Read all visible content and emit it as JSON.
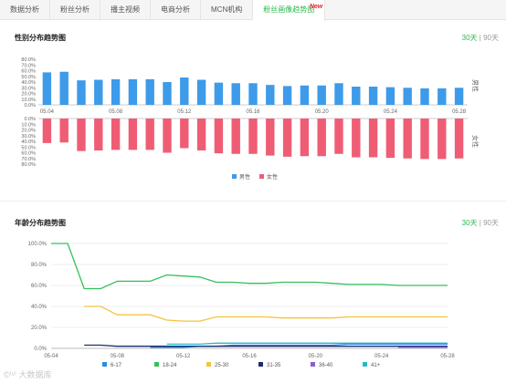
{
  "tabs": [
    {
      "label": "数据分析",
      "active": false
    },
    {
      "label": "粉丝分析",
      "active": false
    },
    {
      "label": "播主视频",
      "active": false
    },
    {
      "label": "电商分析",
      "active": false
    },
    {
      "label": "MCN机构",
      "active": false
    },
    {
      "label": "粉丝画像趋势图",
      "active": true
    }
  ],
  "new_badge": "New",
  "gender_section": {
    "title": "性别分布趋势图",
    "range_30": "30天",
    "range_sep": " | ",
    "range_90": "90天"
  },
  "age_section": {
    "title": "年龄分布趋势图",
    "range_30": "30天",
    "range_sep": " | ",
    "range_90": "90天"
  },
  "watermark": "©⁽ᵛ⁾ 大数据库",
  "chart_data": [
    {
      "type": "bar",
      "title": "性别分布趋势图",
      "x": [
        "05.04",
        "05.05",
        "05.06",
        "05.07",
        "05.08",
        "05.09",
        "05.10",
        "05.11",
        "05.12",
        "05.13",
        "05.14",
        "05.15",
        "05.16",
        "05.17",
        "05.18",
        "05.19",
        "05.20",
        "05.21",
        "05.22",
        "05.23",
        "05.24",
        "05.25",
        "05.26",
        "05.27",
        "05.28"
      ],
      "x_tick_labels": [
        "05.04",
        "05.08",
        "05.12",
        "05.16",
        "05.20",
        "05.24",
        "05.28"
      ],
      "series": [
        {
          "name": "男性",
          "color": "#3d9be9",
          "values": [
            57,
            58,
            43,
            44,
            45,
            45,
            45,
            40,
            48,
            44,
            39,
            38,
            38,
            35,
            33,
            34,
            34,
            38,
            32,
            32,
            31,
            30,
            29,
            29,
            30
          ]
        },
        {
          "name": "女性",
          "color": "#ef5d75",
          "values": [
            43,
            42,
            57,
            56,
            55,
            55,
            55,
            60,
            52,
            56,
            61,
            62,
            62,
            65,
            67,
            66,
            66,
            62,
            68,
            68,
            69,
            70,
            71,
            71,
            70
          ]
        }
      ],
      "male_ylim": [
        0,
        80
      ],
      "female_ylim": [
        0,
        80
      ],
      "y_ticks": [
        "0.0%",
        "10.0%",
        "20.0%",
        "30.0%",
        "40.0%",
        "50.0%",
        "60.0%",
        "70.0%",
        "80.0%"
      ],
      "side_labels": [
        "男性",
        "女性"
      ],
      "legend_position": "bottom-center"
    },
    {
      "type": "line",
      "title": "年龄分布趋势图",
      "x": [
        "05.04",
        "05.05",
        "05.06",
        "05.07",
        "05.08",
        "05.09",
        "05.10",
        "05.11",
        "05.12",
        "05.13",
        "05.14",
        "05.15",
        "05.16",
        "05.17",
        "05.18",
        "05.19",
        "05.20",
        "05.21",
        "05.22",
        "05.23",
        "05.24",
        "05.25",
        "05.26",
        "05.27",
        "05.28"
      ],
      "x_tick_labels": [
        "05-04",
        "05-08",
        "05-12",
        "05-16",
        "05-20",
        "05-24",
        "05-28"
      ],
      "ylim": [
        0,
        100
      ],
      "y_ticks": [
        "0.0%",
        "20.0%",
        "40.0%",
        "60.0%",
        "80.0%",
        "100.0%"
      ],
      "series": [
        {
          "name": "6-17",
          "color": "#2a8be0",
          "values": [
            null,
            null,
            null,
            null,
            null,
            null,
            1,
            1,
            1,
            2,
            2,
            3,
            3,
            3,
            3,
            3,
            3,
            3,
            4,
            4,
            4,
            4,
            4,
            4,
            4
          ]
        },
        {
          "name": "18-24",
          "color": "#34c05c",
          "values": [
            100,
            100,
            57,
            57,
            64,
            64,
            64,
            70,
            69,
            68,
            63,
            63,
            62,
            62,
            63,
            63,
            63,
            62,
            61,
            61,
            61,
            60,
            60,
            60,
            60
          ]
        },
        {
          "name": "25-30",
          "color": "#f6c242",
          "values": [
            null,
            null,
            40,
            40,
            32,
            32,
            32,
            27,
            26,
            26,
            30,
            30,
            30,
            30,
            29,
            29,
            29,
            29,
            30,
            30,
            30,
            30,
            30,
            30,
            30
          ]
        },
        {
          "name": "31-35",
          "color": "#1a2c6e",
          "values": [
            null,
            null,
            3,
            3,
            2,
            2,
            2,
            2,
            2,
            2,
            2,
            2,
            2,
            2,
            2,
            2,
            2,
            2,
            2,
            2,
            2,
            2,
            2,
            2,
            2
          ]
        },
        {
          "name": "36-40",
          "color": "#8b5cd6",
          "values": [
            null,
            null,
            null,
            null,
            null,
            null,
            null,
            null,
            null,
            null,
            null,
            null,
            null,
            null,
            null,
            null,
            null,
            null,
            null,
            null,
            null,
            1,
            1,
            1,
            1
          ]
        },
        {
          "name": "41+",
          "color": "#28b8c9",
          "values": [
            null,
            null,
            null,
            null,
            null,
            null,
            null,
            4,
            4,
            4,
            5,
            5,
            5,
            5,
            5,
            5,
            5,
            5,
            5,
            5,
            5,
            5,
            5,
            5,
            5
          ]
        }
      ],
      "legend_position": "bottom-center",
      "grid": true
    }
  ]
}
